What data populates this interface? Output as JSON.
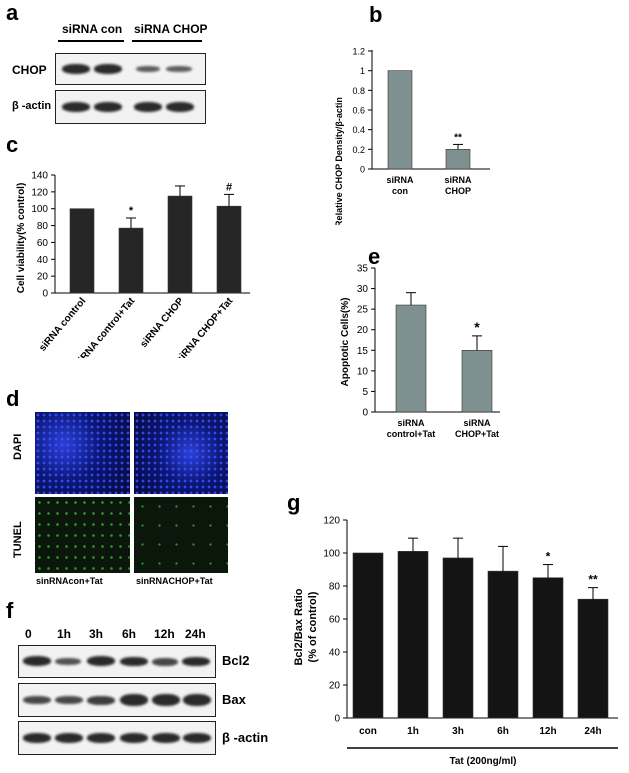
{
  "panels": {
    "a": "a",
    "b": "b",
    "c": "c",
    "d": "d",
    "e": "e",
    "f": "f",
    "g": "g"
  },
  "panel_a": {
    "header_left": "siRNA con",
    "header_right": "siRNA CHOP",
    "row1": "CHOP",
    "row2": "β -actin"
  },
  "panel_d": {
    "row1": "DAPI",
    "row2": "TUNEL",
    "col1": "sinRNAcon+Tat",
    "col2": "sinRNACHOP+Tat"
  },
  "panel_f": {
    "timepoints": [
      "0",
      "1h",
      "3h",
      "6h",
      "12h",
      "24h"
    ],
    "rows": [
      "Bcl2",
      "Bax",
      "β -actin"
    ]
  },
  "chart_data": [
    {
      "id": "b",
      "type": "bar",
      "categories": [
        "siRNA\ncon",
        "siRNA\nCHOP"
      ],
      "values": [
        1.0,
        0.2
      ],
      "errors": [
        0,
        0.05
      ],
      "annotations": [
        "",
        "**"
      ],
      "ylabel": "Relative CHOP Density/β-actin",
      "ylim": [
        0,
        1.2
      ],
      "yticks": [
        "0",
        "0.2",
        "0.4",
        "0.6",
        "0.8",
        "1",
        "1.2"
      ],
      "bar_color": "#7f9090"
    },
    {
      "id": "c",
      "type": "bar",
      "categories": [
        "siRNA control",
        "siRNA control+Tat",
        "siRNA CHOP",
        "siRNA CHOP+Tat"
      ],
      "values": [
        100,
        77,
        115,
        103
      ],
      "errors": [
        0,
        12,
        12,
        14
      ],
      "annotations": [
        "",
        "*",
        "",
        "#"
      ],
      "ylabel": "Cell viability(% control)",
      "ylim": [
        0,
        140
      ],
      "yticks": [
        "0",
        "20",
        "40",
        "60",
        "80",
        "100",
        "120",
        "140"
      ],
      "bar_color": "#262626"
    },
    {
      "id": "e",
      "type": "bar",
      "categories": [
        "siRNA\ncontrol+Tat",
        "siRNA\nCHOP+Tat"
      ],
      "values": [
        26,
        15
      ],
      "errors": [
        3,
        3.5
      ],
      "annotations": [
        "",
        "*"
      ],
      "ylabel": "Apoptotic Cells(%)",
      "ylim": [
        0,
        35
      ],
      "yticks": [
        "0",
        "5",
        "10",
        "15",
        "20",
        "25",
        "30",
        "35"
      ],
      "bar_color": "#7f9090"
    },
    {
      "id": "g",
      "type": "bar",
      "categories": [
        "con",
        "1h",
        "3h",
        "6h",
        "12h",
        "24h"
      ],
      "values": [
        100,
        101,
        97,
        89,
        85,
        72
      ],
      "errors": [
        0,
        8,
        12,
        15,
        8,
        7
      ],
      "annotations": [
        "",
        "",
        "",
        "",
        "*",
        "**"
      ],
      "ylabel": "Bcl2/Bax Ratio\n(% of control)",
      "xlabel": "Tat (200ng/ml)",
      "ylim": [
        0,
        120
      ],
      "yticks": [
        "0",
        "20",
        "40",
        "60",
        "80",
        "100",
        "120"
      ],
      "bar_color": "#141414"
    }
  ]
}
